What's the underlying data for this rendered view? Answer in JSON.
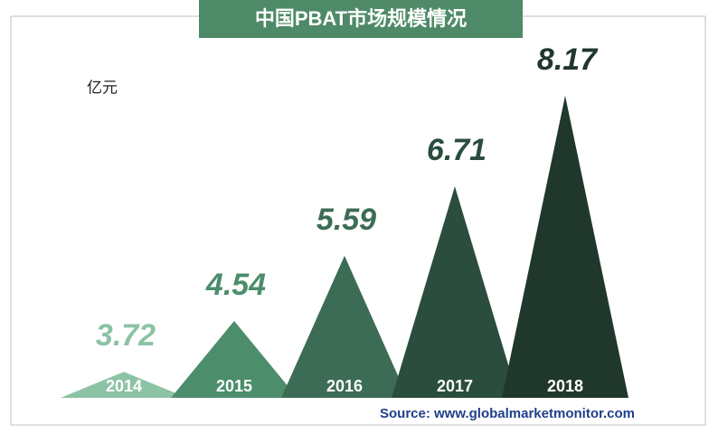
{
  "chart_data": {
    "type": "triangle-bar",
    "title": "中国PBAT市场规模情况",
    "unit": "亿元",
    "categories": [
      "2014",
      "2015",
      "2016",
      "2017",
      "2018"
    ],
    "values": [
      3.72,
      4.54,
      5.59,
      6.71,
      8.17
    ],
    "colors": [
      "#8cc3a5",
      "#4c8d6c",
      "#3c6c55",
      "#2b4d3d",
      "#20382b"
    ],
    "ylim": [
      3.3,
      9.0
    ],
    "source": "Source: www.globalmarketmonitor.com"
  }
}
